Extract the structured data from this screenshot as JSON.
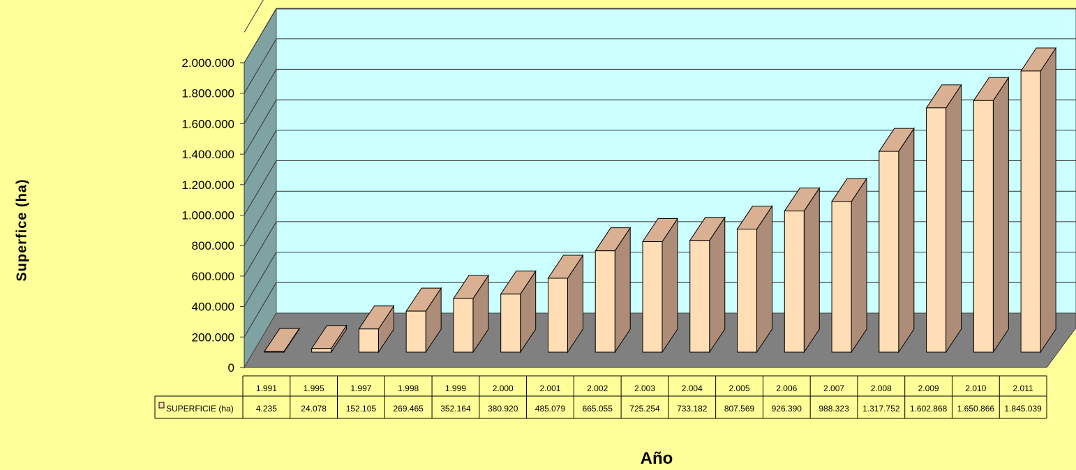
{
  "chart_data": {
    "type": "bar",
    "ylabel": "Superfice (ha)",
    "xlabel": "Año",
    "ylim": [
      0,
      2000000
    ],
    "yticks": [
      {
        "value": 0,
        "label": "0"
      },
      {
        "value": 200000,
        "label": "200.000"
      },
      {
        "value": 400000,
        "label": "400.000"
      },
      {
        "value": 600000,
        "label": "600.000"
      },
      {
        "value": 800000,
        "label": "800.000"
      },
      {
        "value": 1000000,
        "label": "1.000.000"
      },
      {
        "value": 1200000,
        "label": "1.200.000"
      },
      {
        "value": 1400000,
        "label": "1.400.000"
      },
      {
        "value": 1600000,
        "label": "1.600.000"
      },
      {
        "value": 1800000,
        "label": "1.800.000"
      },
      {
        "value": 2000000,
        "label": "2.000.000"
      }
    ],
    "categories": [
      "1.991",
      "1.995",
      "1.997",
      "1.998",
      "1.999",
      "2.000",
      "2.001",
      "2.002",
      "2.003",
      "2.004",
      "2.005",
      "2.006",
      "2.007",
      "2.008",
      "2.009",
      "2.010",
      "2.011"
    ],
    "series": [
      {
        "name": "SUPERFICIE (ha)",
        "values": [
          4235,
          24078,
          152105,
          269465,
          352164,
          380920,
          485079,
          665055,
          725254,
          733182,
          807569,
          926390,
          988323,
          1317752,
          1602868,
          1650866,
          1845039
        ],
        "value_labels": [
          "4.235",
          "24.078",
          "152.105",
          "269.465",
          "352.164",
          "380.920",
          "485.079",
          "665.055",
          "725.254",
          "733.182",
          "807.569",
          "926.390",
          "988.323",
          "1.317.752",
          "1.602.868",
          "1.650.866",
          "1.845.039"
        ]
      }
    ],
    "grid": true,
    "data_table": true,
    "colors": {
      "background": "#FFFF99",
      "back_wall": "#CCFFFF",
      "side_wall": "#7FA3A3",
      "floor": "#808080",
      "bar_front": "#FFDDB5",
      "bar_top": "#D9B092",
      "bar_side": "#AD8C78"
    }
  }
}
